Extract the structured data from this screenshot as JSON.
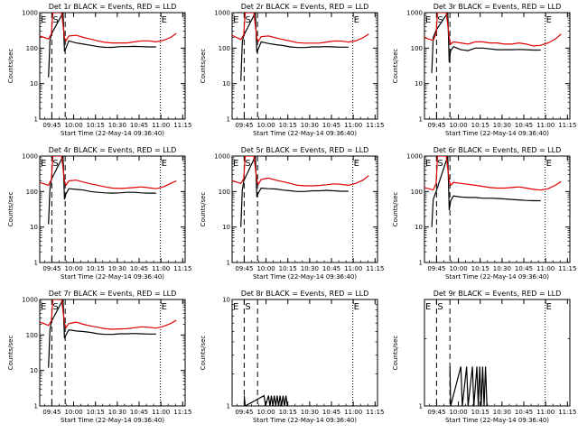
{
  "colors": {
    "events": "#000000",
    "lld": "#e00000",
    "axes": "#000000",
    "background": "#ffffff"
  },
  "chart_data": [
    {
      "type": "line",
      "title": "Det 1r BLACK = Events, RED = LLD",
      "xlabel": "Start Time (22-May-14 09:36:40)",
      "ylabel": "Counts/sec",
      "xticks": [
        "09:45",
        "10:00",
        "10:15",
        "10:30",
        "10:45",
        "11:00",
        "11:15"
      ],
      "yticks": [
        "1",
        "10",
        "100",
        "1000"
      ],
      "ylog": true,
      "ylim": [
        1,
        1000
      ],
      "markers": [
        {
          "label": "E",
          "x": 0
        },
        {
          "label": "S",
          "x": 8.3
        },
        {
          "label": "E",
          "x": 83
        }
      ],
      "dashed_lines": [
        8.3,
        17.5
      ],
      "dotted_lines": [
        83
      ],
      "series": [
        {
          "name": "Events",
          "x": [
            6,
            7,
            8,
            16,
            17,
            18,
            20,
            25,
            30,
            35,
            40,
            45,
            50,
            55,
            60,
            65,
            70,
            75,
            80
          ],
          "y": [
            15,
            160,
            250,
            1000,
            80,
            100,
            160,
            140,
            130,
            120,
            110,
            105,
            105,
            110,
            110,
            112,
            110,
            108,
            108
          ]
        },
        {
          "name": "LLD",
          "x": [
            0,
            3,
            6,
            8,
            9,
            15,
            17,
            18,
            20,
            25,
            30,
            35,
            40,
            45,
            50,
            55,
            60,
            65,
            70,
            75,
            80,
            85,
            90,
            94
          ],
          "y": [
            220,
            200,
            180,
            250,
            1000,
            1000,
            200,
            160,
            220,
            230,
            200,
            180,
            160,
            145,
            140,
            140,
            140,
            150,
            160,
            160,
            150,
            165,
            200,
            260
          ]
        }
      ]
    },
    {
      "type": "line",
      "title": "Det 2r BLACK = Events, RED = LLD",
      "xlabel": "Start Time (22-May-14 09:36:40)",
      "ylabel": "Counts/sec",
      "xticks": [
        "09:45",
        "10:00",
        "10:15",
        "10:30",
        "10:45",
        "11:00",
        "11:15"
      ],
      "yticks": [
        "1",
        "10",
        "100",
        "1000"
      ],
      "ylog": true,
      "ylim": [
        1,
        1000
      ],
      "markers": [
        {
          "label": "E",
          "x": 0
        },
        {
          "label": "S",
          "x": 8.3
        },
        {
          "label": "E",
          "x": 83
        }
      ],
      "dashed_lines": [
        8.3,
        17.5
      ],
      "dotted_lines": [
        83
      ],
      "series": [
        {
          "name": "Events",
          "x": [
            6,
            7,
            8,
            16,
            17,
            18,
            20,
            25,
            30,
            35,
            40,
            45,
            50,
            55,
            60,
            65,
            70,
            75,
            80
          ],
          "y": [
            12,
            150,
            230,
            1000,
            75,
            95,
            150,
            135,
            125,
            118,
            108,
            104,
            104,
            108,
            108,
            110,
            108,
            106,
            106
          ]
        },
        {
          "name": "LLD",
          "x": [
            0,
            3,
            6,
            8,
            9,
            15,
            17,
            18,
            20,
            25,
            30,
            35,
            40,
            45,
            50,
            55,
            60,
            65,
            70,
            75,
            80,
            85,
            90,
            94
          ],
          "y": [
            230,
            200,
            175,
            240,
            1000,
            1000,
            190,
            155,
            210,
            220,
            195,
            175,
            158,
            142,
            138,
            138,
            138,
            148,
            158,
            158,
            148,
            160,
            195,
            250
          ]
        }
      ]
    },
    {
      "type": "line",
      "title": "Det 3r BLACK = Events, RED = LLD",
      "xlabel": "Start Time (22-May-14 09:36:40)",
      "ylabel": "Counts/sec",
      "xticks": [
        "09:45",
        "10:00",
        "10:15",
        "10:30",
        "10:45",
        "11:00",
        "11:15"
      ],
      "yticks": [
        "1",
        "10",
        "100",
        "1000"
      ],
      "ylog": true,
      "ylim": [
        1,
        1000
      ],
      "markers": [
        {
          "label": "E",
          "x": 0
        },
        {
          "label": "S",
          "x": 8.3
        },
        {
          "label": "E",
          "x": 83
        }
      ],
      "dashed_lines": [
        8.3,
        17.5
      ],
      "dotted_lines": [
        83
      ],
      "series": [
        {
          "name": "Events",
          "x": [
            5,
            6,
            8,
            16,
            17,
            18,
            20,
            25,
            30,
            35,
            40,
            45,
            50,
            55,
            60,
            65,
            70,
            75,
            80
          ],
          "y": [
            20,
            200,
            320,
            1000,
            40,
            85,
            110,
            90,
            85,
            100,
            100,
            95,
            90,
            90,
            90,
            92,
            90,
            88,
            88
          ]
        },
        {
          "name": "LLD",
          "x": [
            0,
            3,
            6,
            8,
            9,
            15,
            17,
            18,
            20,
            25,
            30,
            35,
            40,
            45,
            50,
            55,
            60,
            65,
            70,
            75,
            80,
            85,
            90,
            94
          ],
          "y": [
            200,
            180,
            165,
            260,
            1000,
            1000,
            200,
            130,
            150,
            140,
            130,
            150,
            150,
            140,
            140,
            130,
            130,
            140,
            130,
            115,
            120,
            140,
            180,
            250
          ]
        }
      ]
    },
    {
      "type": "line",
      "title": "Det 4r BLACK = Events, RED = LLD",
      "xlabel": "Start Time (22-May-14 09:36:40)",
      "ylabel": "Counts/sec",
      "xticks": [
        "09:45",
        "10:00",
        "10:15",
        "10:30",
        "10:45",
        "11:00",
        "11:15"
      ],
      "yticks": [
        "1",
        "10",
        "100",
        "1000"
      ],
      "ylog": true,
      "ylim": [
        1,
        1000
      ],
      "markers": [
        {
          "label": "E",
          "x": 0
        },
        {
          "label": "S",
          "x": 8.3
        },
        {
          "label": "E",
          "x": 83
        }
      ],
      "dashed_lines": [
        8.3,
        17.5
      ],
      "dotted_lines": [
        83
      ],
      "series": [
        {
          "name": "Events",
          "x": [
            6,
            7,
            8,
            16,
            17,
            18,
            20,
            25,
            30,
            35,
            40,
            45,
            50,
            55,
            60,
            65,
            70,
            75,
            80
          ],
          "y": [
            12,
            120,
            220,
            1000,
            60,
            85,
            120,
            115,
            110,
            100,
            95,
            92,
            90,
            92,
            95,
            95,
            92,
            90,
            90
          ]
        },
        {
          "name": "LLD",
          "x": [
            0,
            3,
            6,
            8,
            9,
            15,
            17,
            18,
            20,
            25,
            30,
            35,
            40,
            45,
            50,
            55,
            60,
            65,
            70,
            75,
            80,
            85,
            90,
            94
          ],
          "y": [
            180,
            165,
            150,
            220,
            1000,
            1000,
            200,
            150,
            200,
            210,
            185,
            165,
            150,
            135,
            125,
            122,
            125,
            130,
            135,
            128,
            120,
            135,
            170,
            200
          ]
        }
      ]
    },
    {
      "type": "line",
      "title": "Det 5r BLACK = Events, RED = LLD",
      "xlabel": "Start Time (22-May-14 09:36:40)",
      "ylabel": "Counts/sec",
      "xticks": [
        "09:45",
        "10:00",
        "10:15",
        "10:30",
        "10:45",
        "11:00",
        "11:15"
      ],
      "yticks": [
        "1",
        "10",
        "100",
        "1000"
      ],
      "ylog": true,
      "ylim": [
        1,
        1000
      ],
      "markers": [
        {
          "label": "E",
          "x": 0
        },
        {
          "label": "S",
          "x": 8.3
        },
        {
          "label": "E",
          "x": 83
        }
      ],
      "dashed_lines": [
        8.3,
        17.5
      ],
      "dotted_lines": [
        83
      ],
      "series": [
        {
          "name": "Events",
          "x": [
            6,
            7,
            8,
            16,
            17,
            18,
            20,
            25,
            30,
            35,
            40,
            45,
            50,
            55,
            60,
            65,
            70,
            75,
            80
          ],
          "y": [
            10,
            110,
            200,
            1000,
            70,
            90,
            125,
            120,
            118,
            110,
            105,
            100,
            100,
            105,
            105,
            108,
            105,
            102,
            102
          ]
        },
        {
          "name": "LLD",
          "x": [
            0,
            3,
            6,
            8,
            9,
            15,
            17,
            18,
            20,
            25,
            30,
            35,
            40,
            45,
            50,
            55,
            60,
            65,
            70,
            75,
            80,
            85,
            90,
            94
          ],
          "y": [
            200,
            185,
            170,
            230,
            1000,
            1000,
            210,
            160,
            220,
            240,
            210,
            190,
            170,
            150,
            145,
            145,
            148,
            155,
            165,
            160,
            150,
            170,
            210,
            280
          ]
        }
      ]
    },
    {
      "type": "line",
      "title": "Det 6r BLACK = Events, RED = LLD",
      "xlabel": "Start Time (22-May-14 09:36:40)",
      "ylabel": "Counts/sec",
      "xticks": [
        "09:45",
        "10:00",
        "10:15",
        "10:30",
        "10:45",
        "11:00",
        "11:15"
      ],
      "yticks": [
        "1",
        "10",
        "100",
        "1000"
      ],
      "ylog": true,
      "ylim": [
        1,
        1000
      ],
      "markers": [
        {
          "label": "E",
          "x": 0
        },
        {
          "label": "S",
          "x": 8.3
        },
        {
          "label": "E",
          "x": 83
        }
      ],
      "dashed_lines": [
        8.3,
        17.5
      ],
      "dotted_lines": [
        83
      ],
      "series": [
        {
          "name": "Events",
          "x": [
            5,
            6,
            8,
            16,
            17,
            18,
            20,
            25,
            30,
            35,
            40,
            45,
            50,
            55,
            60,
            65,
            70,
            75,
            80
          ],
          "y": [
            10,
            60,
            100,
            1000,
            30,
            55,
            75,
            70,
            68,
            68,
            65,
            65,
            64,
            62,
            60,
            58,
            56,
            55,
            55
          ]
        },
        {
          "name": "LLD",
          "x": [
            0,
            3,
            6,
            8,
            9,
            15,
            17,
            18,
            20,
            25,
            30,
            35,
            40,
            45,
            50,
            55,
            60,
            65,
            70,
            75,
            80,
            85,
            90,
            94
          ],
          "y": [
            130,
            120,
            110,
            170,
            1000,
            1000,
            200,
            150,
            180,
            170,
            160,
            150,
            140,
            130,
            125,
            125,
            130,
            135,
            125,
            115,
            110,
            120,
            150,
            190
          ]
        }
      ]
    },
    {
      "type": "line",
      "title": "Det 7r BLACK = Events, RED = LLD",
      "xlabel": "Start Time (22-May-14 09:36:40)",
      "ylabel": "Counts/sec",
      "xticks": [
        "09:45",
        "10:00",
        "10:15",
        "10:30",
        "10:45",
        "11:00",
        "11:15"
      ],
      "yticks": [
        "1",
        "10",
        "100",
        "1000"
      ],
      "ylog": true,
      "ylim": [
        1,
        1000
      ],
      "markers": [
        {
          "label": "E",
          "x": 0
        },
        {
          "label": "S",
          "x": 8.3
        },
        {
          "label": "E",
          "x": 83
        }
      ],
      "dashed_lines": [
        8.3,
        17.5
      ],
      "dotted_lines": [
        83
      ],
      "series": [
        {
          "name": "Events",
          "x": [
            6,
            7,
            8,
            16,
            17,
            18,
            20,
            25,
            30,
            35,
            40,
            45,
            50,
            55,
            60,
            65,
            70,
            75,
            80
          ],
          "y": [
            12,
            140,
            240,
            1000,
            80,
            100,
            140,
            130,
            125,
            118,
            108,
            104,
            104,
            108,
            108,
            110,
            108,
            106,
            106
          ]
        },
        {
          "name": "LLD",
          "x": [
            0,
            3,
            6,
            8,
            9,
            15,
            17,
            18,
            20,
            25,
            30,
            35,
            40,
            45,
            50,
            55,
            60,
            65,
            70,
            75,
            80,
            85,
            90,
            94
          ],
          "y": [
            230,
            210,
            185,
            250,
            1000,
            1000,
            220,
            160,
            210,
            230,
            200,
            180,
            165,
            150,
            145,
            148,
            150,
            160,
            170,
            165,
            155,
            175,
            210,
            260
          ]
        }
      ]
    },
    {
      "type": "line",
      "title": "Det 8r BLACK = Events, RED = LLD",
      "xlabel": "Start Time (22-May-14 09:36:40)",
      "ylabel": "Counts/sec",
      "xticks": [
        "09:45",
        "10:00",
        "10:15",
        "10:30",
        "10:45",
        "11:00",
        "11:15"
      ],
      "yticks": [
        "1",
        "10"
      ],
      "ylog": true,
      "ylim": [
        1,
        10
      ],
      "markers": [
        {
          "label": "E",
          "x": 0
        },
        {
          "label": "S",
          "x": 8.3
        },
        {
          "label": "E",
          "x": 83
        }
      ],
      "dashed_lines": [
        8.3,
        17.5
      ],
      "dotted_lines": [
        83
      ],
      "series": [
        {
          "name": "Events",
          "x": [
            8.3,
            9,
            22,
            23,
            25,
            26,
            27,
            28,
            29,
            30,
            31,
            32,
            33,
            34,
            35,
            36,
            37,
            38
          ],
          "y": [
            1.25,
            1,
            1.25,
            1,
            1.25,
            1,
            1.25,
            1,
            1.25,
            1,
            1.25,
            1,
            1.25,
            1,
            1.25,
            1,
            1.25,
            1
          ]
        }
      ]
    },
    {
      "type": "line",
      "title": "Det 9r BLACK = Events, RED = LLD",
      "xlabel": "Start Time (22-May-14 09:36:40)",
      "ylabel": "Counts/sec",
      "xticks": [
        "09:45",
        "10:00",
        "10:15",
        "10:30",
        "10:45",
        "11:00",
        "11:15"
      ],
      "yticks": [
        "1"
      ],
      "ylog": true,
      "ylim": [
        1,
        3
      ],
      "markers": [
        {
          "label": "E",
          "x": 0
        },
        {
          "label": "S",
          "x": 8.3
        },
        {
          "label": "E",
          "x": 83
        }
      ],
      "dashed_lines": [
        8.3,
        17.5
      ],
      "dotted_lines": [
        83
      ],
      "series": [
        {
          "name": "Events",
          "x": [
            17.5,
            18,
            25,
            26,
            29,
            30,
            33,
            34,
            36,
            37,
            38,
            39,
            40,
            41,
            42,
            43
          ],
          "y": [
            1.5,
            1,
            1.5,
            1,
            1.5,
            1,
            1.5,
            1,
            1.5,
            1,
            1.5,
            1,
            1.5,
            1,
            1.5,
            1
          ]
        }
      ]
    }
  ]
}
